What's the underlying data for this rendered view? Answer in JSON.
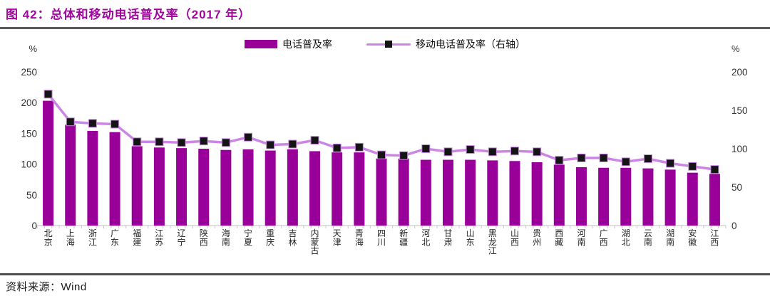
{
  "header": {
    "title": "图 42：总体和移动电话普及率（2017 年）"
  },
  "footer": {
    "source": "资料来源：Wind"
  },
  "colors": {
    "title": "#A1059E",
    "bar": "#990099",
    "line": "#CC85E5",
    "marker": "#141414",
    "axis_text": "#333333",
    "baseline": "#c9c9c9",
    "rule_dark": "#595959"
  },
  "chart_data": {
    "type": "bar",
    "title": "图 42：总体和移动电话普及率（2017 年）",
    "categories": [
      "北京",
      "上海",
      "浙江",
      "广东",
      "福建",
      "江苏",
      "辽宁",
      "陕西",
      "海南",
      "宁夏",
      "重庆",
      "吉林",
      "内蒙古",
      "天津",
      "青海",
      "四川",
      "新疆",
      "河北",
      "甘肃",
      "山东",
      "黑龙江",
      "山西",
      "贵州",
      "西藏",
      "河南",
      "广西",
      "湖北",
      "云南",
      "湖南",
      "安徽",
      "江西"
    ],
    "series": [
      {
        "name": "电话普及率",
        "type": "bar",
        "axis": "left",
        "color": "#990099",
        "values": [
          203,
          164,
          154,
          152,
          129,
          127,
          126,
          125,
          123,
          124,
          122,
          124,
          121,
          119,
          119,
          109,
          109,
          107,
          107,
          107,
          106,
          105,
          103,
          99,
          95,
          94,
          94,
          93,
          91,
          86,
          84
        ]
      },
      {
        "name": "移动电话普及率（右轴）",
        "type": "line",
        "axis": "right",
        "color": "#CC85E5",
        "marker_color": "#141414",
        "values": [
          171,
          135,
          133,
          132,
          109,
          109,
          108,
          110,
          108,
          115,
          105,
          106,
          111,
          101,
          102,
          92,
          91,
          100,
          96,
          99,
          96,
          97,
          96,
          85,
          88,
          88,
          83,
          87,
          81,
          77,
          73
        ]
      }
    ],
    "left_axis": {
      "unit": "%",
      "min": 0,
      "max": 250,
      "ticks": [
        0,
        50,
        100,
        150,
        200,
        250
      ]
    },
    "right_axis": {
      "unit": "%",
      "min": 0,
      "max": 200,
      "ticks": [
        0,
        50,
        100,
        150,
        200
      ]
    },
    "grid": false,
    "legend_position": "top-center"
  }
}
